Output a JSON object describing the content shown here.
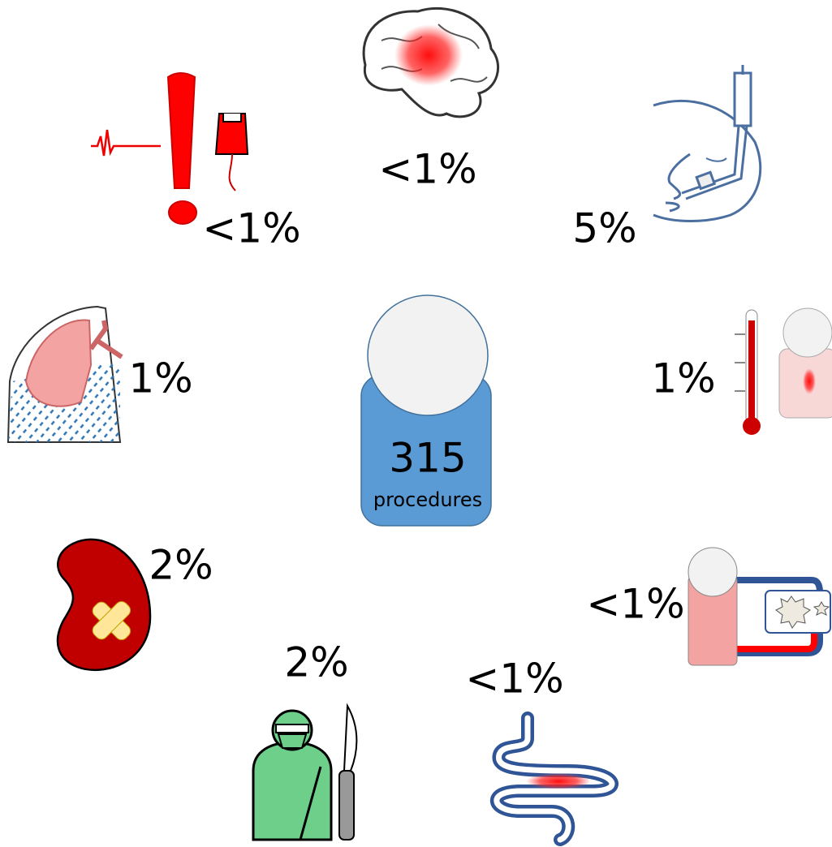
{
  "center": {
    "count": "315",
    "label": "procedures"
  },
  "complications": [
    {
      "label": "<1%"
    },
    {
      "label": "<1%"
    },
    {
      "label": "5%"
    },
    {
      "label": "1%"
    },
    {
      "label": "1%"
    },
    {
      "label": "2%"
    },
    {
      "label": "<1%"
    },
    {
      "label": "2%"
    },
    {
      "label": "<1%"
    }
  ]
}
